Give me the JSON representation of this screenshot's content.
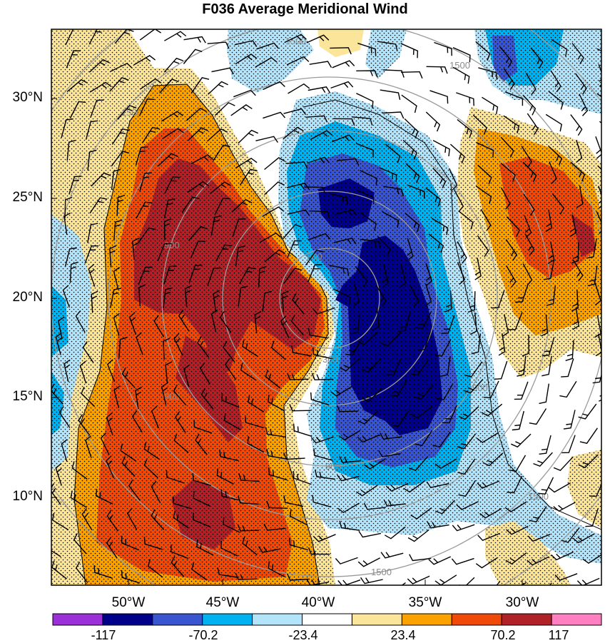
{
  "title": "F036 Average Meridional Wind",
  "latitude_labels": [
    "30°N",
    "25°N",
    "20°N",
    "15°N",
    "10°N"
  ],
  "longitude_labels": [
    "50°W",
    "45°W",
    "40°W",
    "35°W",
    "30°W"
  ],
  "colorbar": {
    "labels": [
      "-117",
      "-70.2",
      "-23.4",
      "23.4",
      "70.2",
      "117"
    ],
    "colors": [
      "#9b30d8",
      "#00008b",
      "#3a55d0",
      "#00b2f0",
      "#b4e4fa",
      "#ffffff",
      "#fbe59a",
      "#fba100",
      "#f04a0a",
      "#b02128",
      "#ff7fc0"
    ]
  },
  "range_ring_labels": [
    "300",
    "900",
    "900",
    "900",
    "1500",
    "1500",
    "1500",
    "1500",
    "1500",
    "900",
    "900"
  ]
}
